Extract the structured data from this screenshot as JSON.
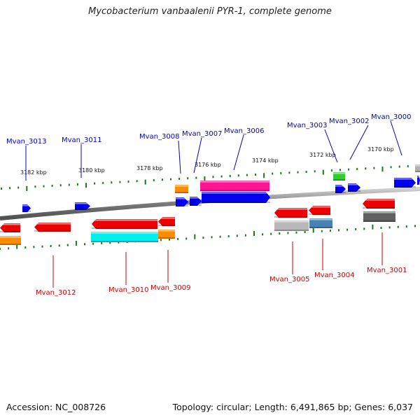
{
  "title": "Mycobacterium vanbaalenii PYR-1, complete genome",
  "footer": {
    "accession": "Accession: NC_008726",
    "topology": "Topology: circular; Length: 6,491,865 bp; Genes: 6,037"
  },
  "colors": {
    "label_top": "#0000cc",
    "label_bottom": "#cc0000",
    "tick": "#1a7a1a",
    "backbone": "#888888"
  },
  "scale_labels": [
    "3182 kbp",
    "3180 kbp",
    "3178 kbp",
    "3176 kbp",
    "3174 kbp",
    "3172 kbp",
    "3170 kbp"
  ],
  "top_labels": [
    "Mvan_3013",
    "Mvan_3011",
    "Mvan_3008",
    "Mvan_3007",
    "Mvan_3006",
    "Mvan_3003",
    "Mvan_3002",
    "Mvan_3000"
  ],
  "bottom_labels": [
    "Mvan_3012",
    "Mvan_3010",
    "Mvan_3009",
    "Mvan_3005",
    "Mvan_3004",
    "Mvan_3001"
  ],
  "genes": [
    {
      "color": "#0000ee",
      "dir": "right"
    },
    {
      "color": "#0000ee",
      "dir": "right"
    },
    {
      "color": "#ff8c00",
      "dir": "none"
    },
    {
      "color": "#0000ee",
      "dir": "right"
    },
    {
      "color": "#0000ee",
      "dir": "right"
    },
    {
      "color": "#ff1493",
      "dir": "none"
    },
    {
      "color": "#0000ee",
      "dir": "right"
    },
    {
      "color": "#33cc33",
      "dir": "none"
    },
    {
      "color": "#0000ee",
      "dir": "right"
    },
    {
      "color": "#0000ee",
      "dir": "right"
    },
    {
      "color": "#0000ee",
      "dir": "right"
    },
    {
      "color": "#0000ee",
      "dir": "right"
    },
    {
      "color": "#b0b0b0",
      "dir": "none"
    },
    {
      "color": "#ee0000",
      "dir": "left"
    },
    {
      "color": "#ff8c00",
      "dir": "none"
    },
    {
      "color": "#ee0000",
      "dir": "left"
    },
    {
      "color": "#ee0000",
      "dir": "left"
    },
    {
      "color": "#00f0f0",
      "dir": "none"
    },
    {
      "color": "#ee0000",
      "dir": "left"
    },
    {
      "color": "#ff8c00",
      "dir": "none"
    },
    {
      "color": "#ee0000",
      "dir": "left"
    },
    {
      "color": "#b8b8b8",
      "dir": "none"
    },
    {
      "color": "#ee0000",
      "dir": "left"
    },
    {
      "color": "#4682b4",
      "dir": "none"
    },
    {
      "color": "#ee0000",
      "dir": "left"
    },
    {
      "color": "#606060",
      "dir": "none"
    }
  ]
}
